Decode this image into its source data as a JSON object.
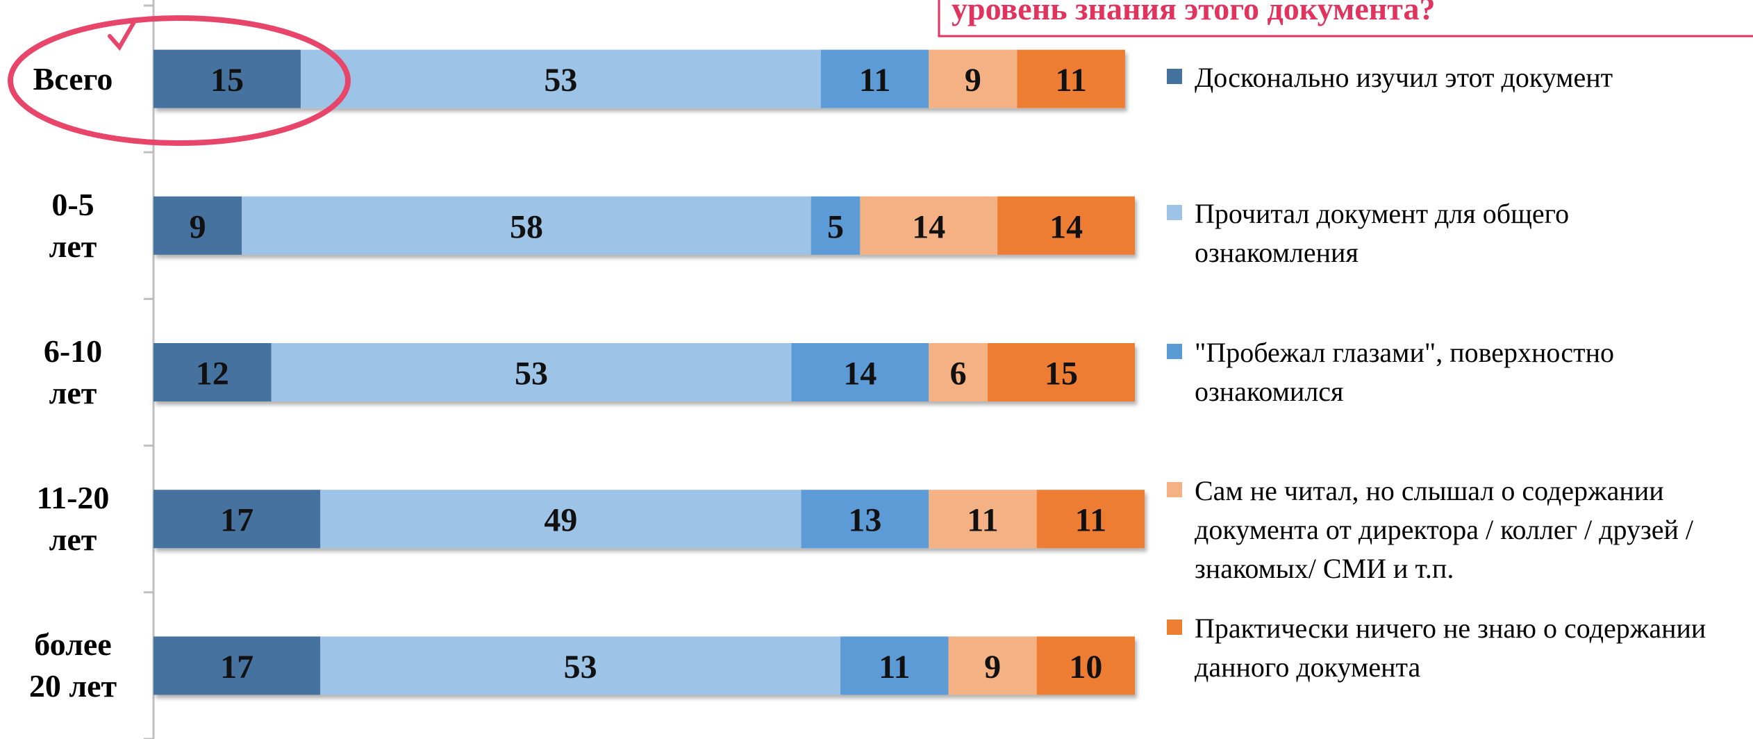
{
  "chart_data": {
    "type": "stacked-bar-horizontal",
    "title": "уровень знания этого документа?",
    "categories": [
      "Всего",
      "0-5\nлет",
      "6-10\nлет",
      "11-20\nлет",
      "более\n20 лет"
    ],
    "xlim": [
      0,
      100
    ],
    "series": [
      {
        "name": "Досконально изучил этот документ",
        "color": "#44729e",
        "values": [
          15,
          9,
          12,
          17,
          17
        ]
      },
      {
        "name": "Прочитал документ для общего ознакомления",
        "color": "#9dc3e6",
        "values": [
          53,
          58,
          53,
          49,
          53
        ]
      },
      {
        "name": "\"Пробежал глазами\", поверхностно ознакомился",
        "color": "#5b9bd5",
        "values": [
          11,
          5,
          14,
          13,
          11
        ]
      },
      {
        "name": "Сам не читал, но слышал о содержании документа от директора / коллег / друзей / знакомых/ СМИ и т.п.",
        "color": "#f4b183",
        "values": [
          9,
          14,
          6,
          11,
          9
        ]
      },
      {
        "name": "Практически ничего не знаю о содержании данного документа",
        "color": "#ed7d31",
        "values": [
          11,
          14,
          15,
          11,
          10
        ]
      }
    ]
  }
}
